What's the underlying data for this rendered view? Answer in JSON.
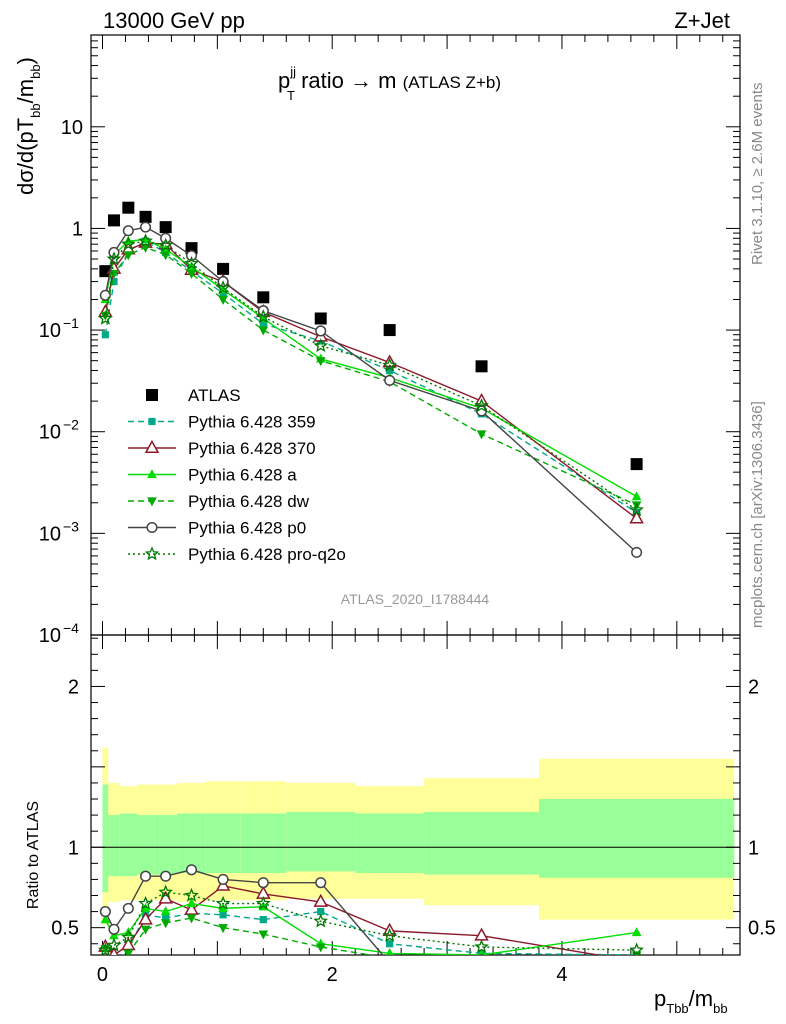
{
  "header": {
    "energy_label": "13000 GeV pp",
    "process_label": "Z+Jet",
    "title_prefix": "p",
    "title_sup": "jj",
    "title_sub": "T",
    "title_main": " ratio → m",
    "title_small": "(ATLAS Z+b)",
    "side_label_top": "Rivet 3.1.10, ≥ 2.6M events",
    "side_label_bottom": "mcplots.cern.ch [arXiv:1306.3436]",
    "watermark": "ATLAS_2020_I1788444",
    "ylabel_main": "dσ/d(pT",
    "ylabel_sub": "bb",
    "ylabel_main2": "/m",
    "ylabel_sub2": "bb",
    "ylabel_close": ")",
    "ylabel_ratio": "Ratio to ATLAS",
    "xlabel": "p",
    "xlabel_sub": "Tbb",
    "xlabel_main2": "/m",
    "xlabel_sub2": "bb"
  },
  "legend": [
    {
      "label": "ATLAS",
      "color": "#000000",
      "marker": "square-filled",
      "dash": "none"
    },
    {
      "label": "Pythia 6.428 359",
      "color": "#00aa88",
      "marker": "square-small",
      "dash": "dashed"
    },
    {
      "label": "Pythia 6.428 370",
      "color": "#8b1a2b",
      "marker": "triangle-open",
      "dash": "solid"
    },
    {
      "label": "Pythia 6.428 a",
      "color": "#00dd00",
      "marker": "triangle-filled",
      "dash": "solid"
    },
    {
      "label": "Pythia 6.428 dw",
      "color": "#00aa00",
      "marker": "triangle-down-filled",
      "dash": "dashed"
    },
    {
      "label": "Pythia 6.428 p0",
      "color": "#444444",
      "marker": "circle-open",
      "dash": "solid"
    },
    {
      "label": "Pythia 6.428 pro-q2o",
      "color": "#007700",
      "marker": "star-open",
      "dash": "dotted"
    }
  ],
  "chart_data": {
    "type": "line",
    "x_scale": "linear",
    "xlim": [
      -0.1,
      5.55
    ],
    "xticks": [
      0,
      2,
      4
    ],
    "main": {
      "y_scale": "log",
      "ylim": [
        0.0001,
        80
      ],
      "yticks": [
        {
          "value": 0.0001,
          "label": "10",
          "exp": "−4"
        },
        {
          "value": 0.001,
          "label": "10",
          "exp": "−3"
        },
        {
          "value": 0.01,
          "label": "10",
          "exp": "−2"
        },
        {
          "value": 0.1,
          "label": "10",
          "exp": "−1"
        },
        {
          "value": 1,
          "label": "1",
          "exp": ""
        },
        {
          "value": 10,
          "label": "10",
          "exp": ""
        }
      ]
    },
    "ratio": {
      "y_scale": "linear",
      "ylim": [
        0.33,
        2.32
      ],
      "yticks": [
        {
          "value": 0.5,
          "label": "0.5"
        },
        {
          "value": 1,
          "label": "1"
        },
        {
          "value": 1.5,
          "label": ""
        },
        {
          "value": 2,
          "label": "2"
        }
      ],
      "band_edges": [
        0,
        0.05,
        0.15,
        0.3,
        0.45,
        0.65,
        0.9,
        1.2,
        1.6,
        2.2,
        2.8,
        3.8,
        5.5
      ],
      "band_yellow": [
        [
          0.52,
          1.62
        ],
        [
          0.66,
          1.4
        ],
        [
          0.67,
          1.38
        ],
        [
          0.67,
          1.39
        ],
        [
          0.67,
          1.39
        ],
        [
          0.66,
          1.4
        ],
        [
          0.67,
          1.41
        ],
        [
          0.67,
          1.41
        ],
        [
          0.68,
          1.4
        ],
        [
          0.68,
          1.38
        ],
        [
          0.64,
          1.43
        ],
        [
          0.55,
          1.55
        ]
      ],
      "band_green": [
        [
          0.72,
          1.39
        ],
        [
          0.82,
          1.2
        ],
        [
          0.82,
          1.21
        ],
        [
          0.83,
          1.2
        ],
        [
          0.83,
          1.2
        ],
        [
          0.84,
          1.21
        ],
        [
          0.84,
          1.21
        ],
        [
          0.84,
          1.21
        ],
        [
          0.85,
          1.22
        ],
        [
          0.84,
          1.21
        ],
        [
          0.83,
          1.22
        ],
        [
          0.81,
          1.3
        ]
      ]
    },
    "x": [
      0.025,
      0.1,
      0.225,
      0.375,
      0.55,
      0.775,
      1.05,
      1.4,
      1.9,
      2.5,
      3.3,
      4.65
    ],
    "series": [
      {
        "name": "ATLAS",
        "values": [
          0.38,
          1.2,
          1.6,
          1.3,
          1.03,
          0.64,
          0.4,
          0.21,
          0.13,
          0.1,
          0.044,
          0.0048
        ]
      },
      {
        "name": "Pythia 6.428 359",
        "values": [
          0.09,
          0.3,
          0.6,
          0.75,
          0.58,
          0.38,
          0.23,
          0.115,
          0.078,
          0.04,
          0.015,
          0.0016
        ],
        "ratio": [
          0.24,
          0.25,
          0.37,
          0.58,
          0.56,
          0.59,
          0.58,
          0.55,
          0.6,
          0.4,
          0.34,
          0.33
        ]
      },
      {
        "name": "Pythia 6.428 370",
        "values": [
          0.15,
          0.4,
          0.62,
          0.72,
          0.7,
          0.39,
          0.3,
          0.15,
          0.086,
          0.048,
          0.02,
          0.0014
        ],
        "ratio": [
          0.38,
          0.33,
          0.39,
          0.55,
          0.68,
          0.61,
          0.76,
          0.71,
          0.66,
          0.48,
          0.45,
          0.29
        ]
      },
      {
        "name": "Pythia 6.428 a",
        "values": [
          0.2,
          0.55,
          0.75,
          0.78,
          0.62,
          0.42,
          0.25,
          0.13,
          0.052,
          0.034,
          0.017,
          0.0023
        ],
        "ratio": [
          0.55,
          0.45,
          0.47,
          0.62,
          0.6,
          0.65,
          0.62,
          0.63,
          0.4,
          0.34,
          0.33,
          0.47
        ]
      },
      {
        "name": "Pythia 6.428 dw",
        "values": [
          0.14,
          0.36,
          0.55,
          0.65,
          0.55,
          0.36,
          0.2,
          0.1,
          0.05,
          0.031,
          0.0095,
          0.0019
        ],
        "ratio": [
          0.37,
          0.3,
          0.34,
          0.49,
          0.53,
          0.56,
          0.5,
          0.46,
          0.38,
          0.31,
          0.26,
          0.33
        ]
      },
      {
        "name": "Pythia 6.428 p0",
        "values": [
          0.22,
          0.58,
          0.95,
          1.03,
          0.8,
          0.54,
          0.3,
          0.155,
          0.098,
          0.032,
          0.016,
          0.00065
        ],
        "ratio": [
          0.6,
          0.49,
          0.62,
          0.82,
          0.82,
          0.86,
          0.8,
          0.78,
          0.78,
          0.28,
          0.3,
          0.13
        ]
      },
      {
        "name": "Pythia 6.428 pro-q2o",
        "values": [
          0.13,
          0.5,
          0.7,
          0.75,
          0.68,
          0.45,
          0.26,
          0.135,
          0.07,
          0.045,
          0.018,
          0.0017
        ],
        "ratio": [
          0.36,
          0.39,
          0.44,
          0.65,
          0.72,
          0.7,
          0.65,
          0.65,
          0.54,
          0.45,
          0.38,
          0.36
        ]
      }
    ]
  }
}
